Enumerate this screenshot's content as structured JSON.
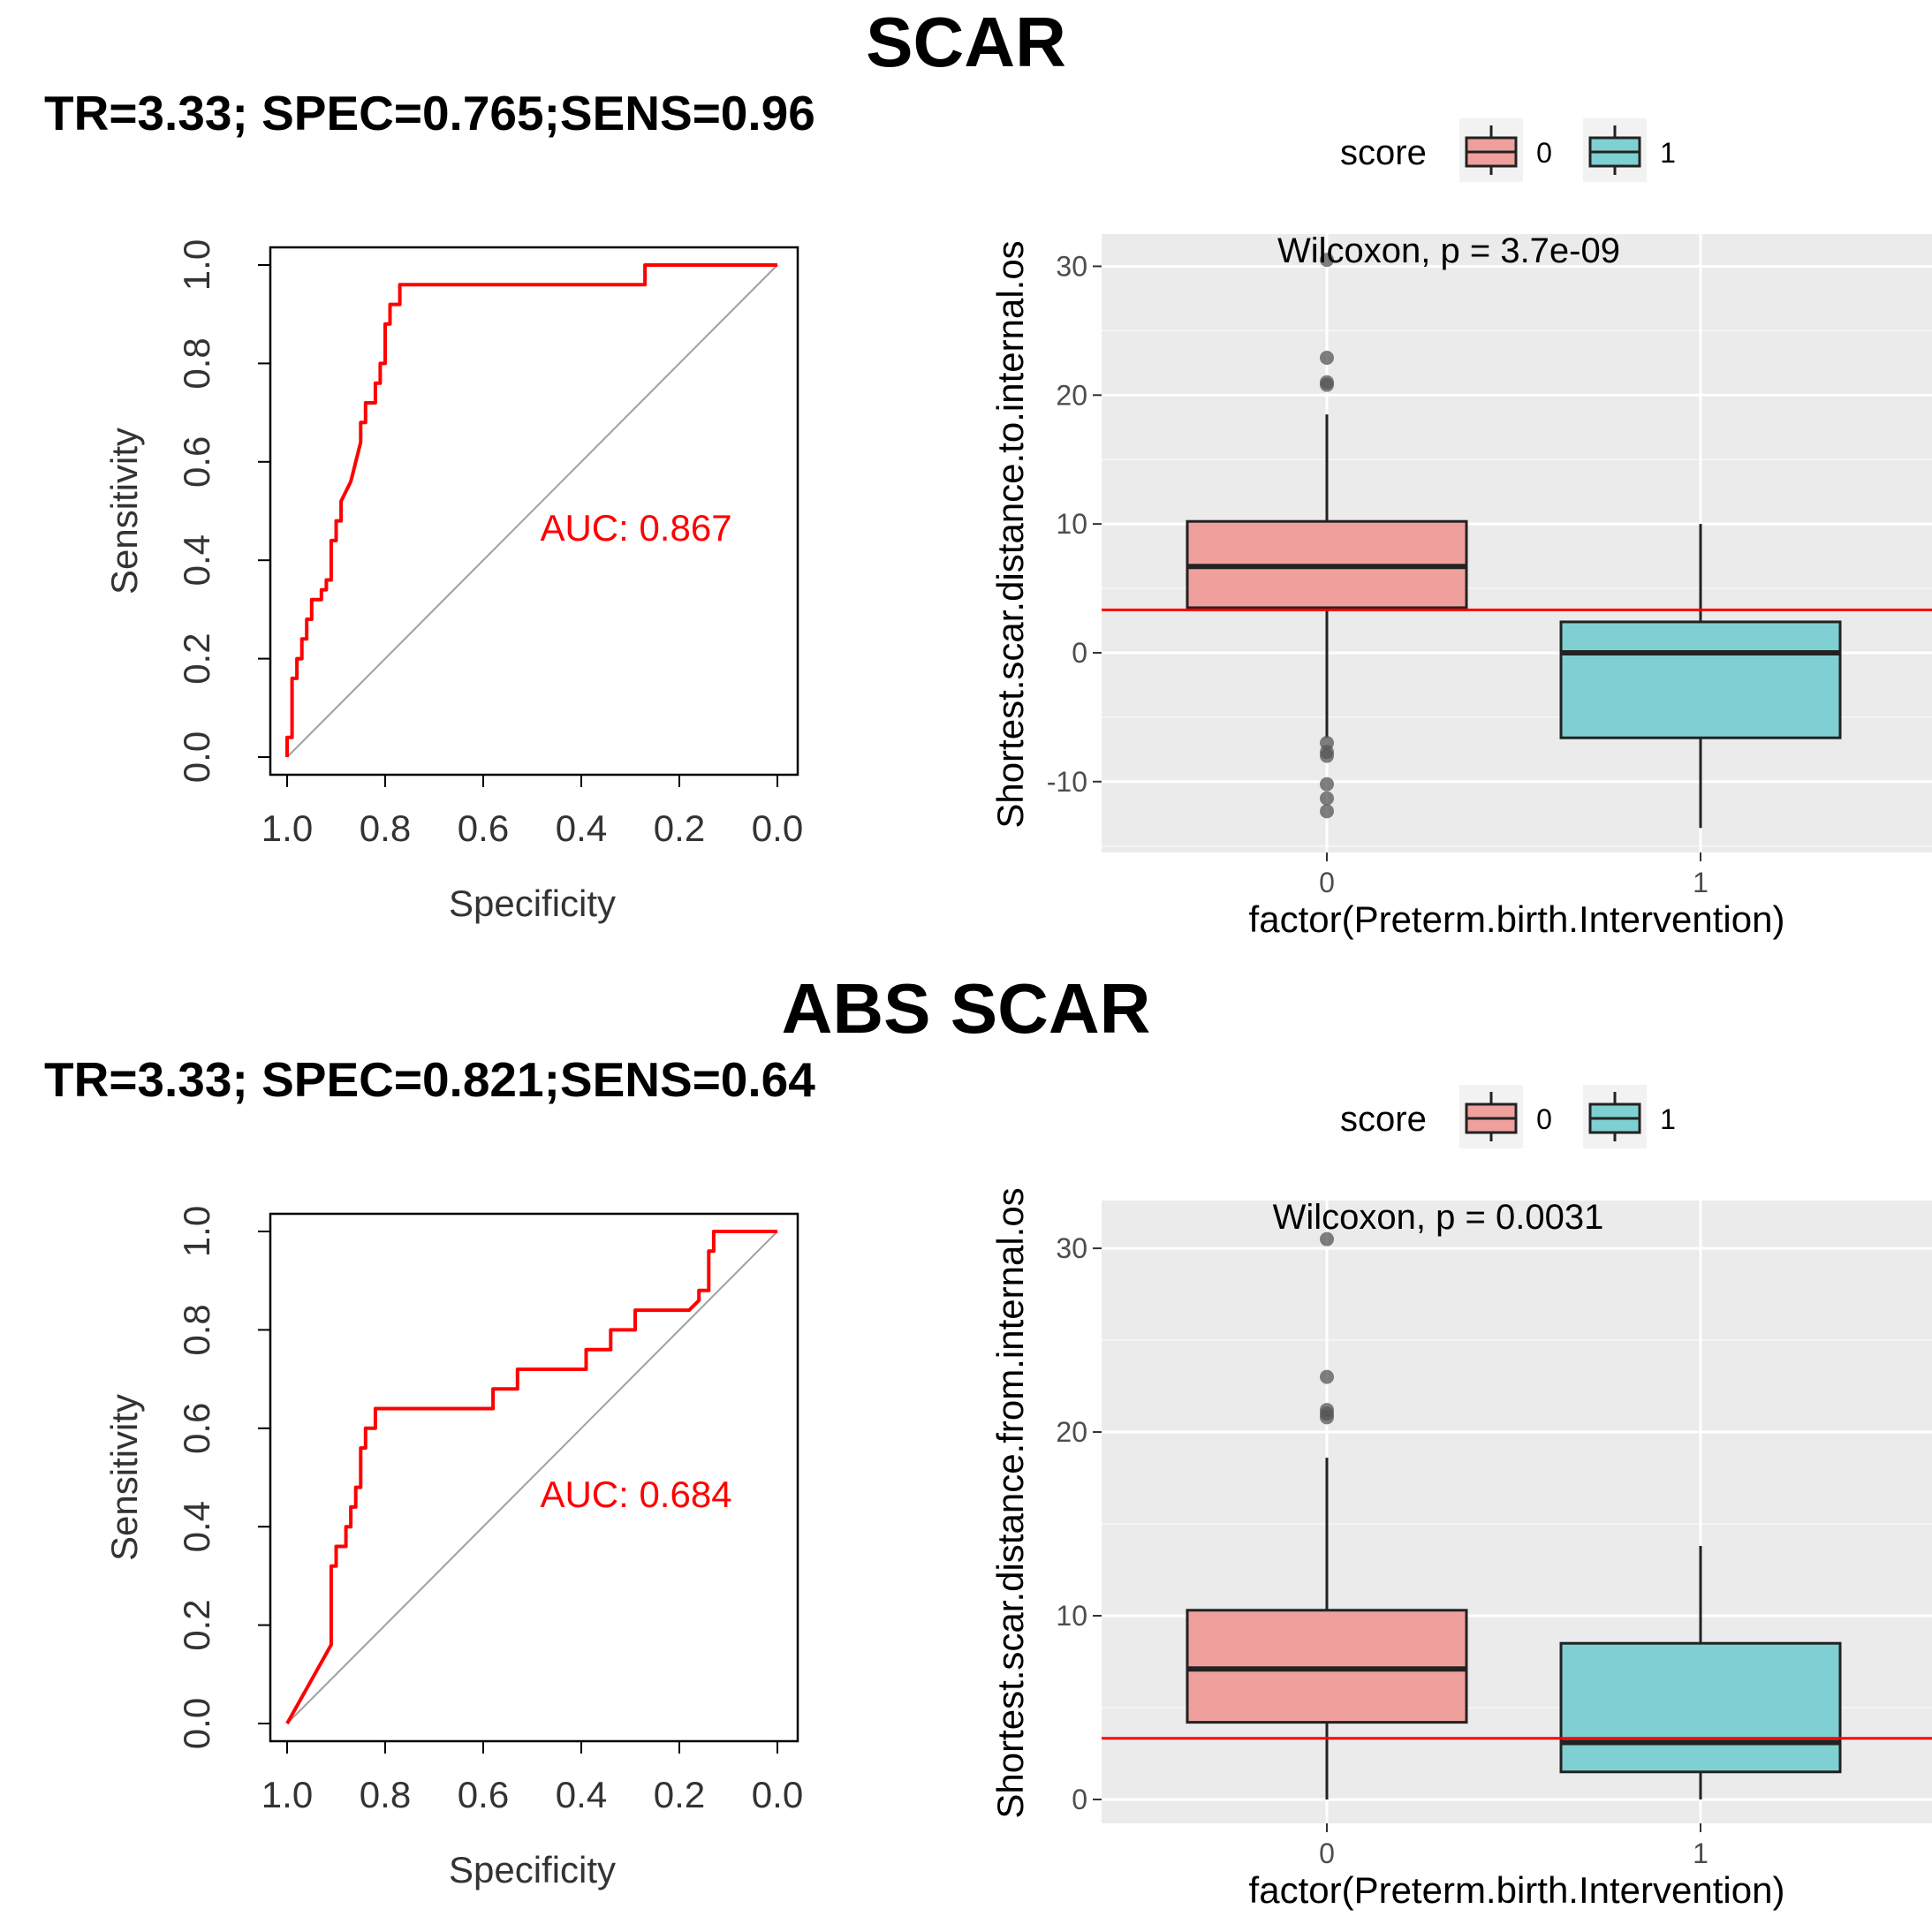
{
  "sections": [
    {
      "title": "SCAR",
      "subtitle": "TR=3.33; SPEC=0.765;SENS=0.96",
      "roc": {
        "xlabel": "Specificity",
        "ylabel": "Sensitivity",
        "auc_label": "AUC: 0.867",
        "xticks": [
          "1.0",
          "0.8",
          "0.6",
          "0.4",
          "0.2",
          "0.0"
        ],
        "yticks": [
          "0.0",
          "0.2",
          "0.4",
          "0.6",
          "0.8",
          "1.0"
        ]
      },
      "box": {
        "legend_title": "score",
        "legend_labels": [
          "0",
          "1"
        ],
        "annotation": "Wilcoxon, p = 3.7e-09",
        "xlabel": "factor(Preterm.birth.Intervention)",
        "ylabel": "Shortest.scar.distance.to.internal.os",
        "categories": [
          "0",
          "1"
        ],
        "yticks": [
          "-10",
          "0",
          "10",
          "20",
          "30"
        ]
      }
    },
    {
      "title": "ABS SCAR",
      "subtitle": "TR=3.33; SPEC=0.821;SENS=0.64",
      "roc": {
        "xlabel": "Specificity",
        "ylabel": "Sensitivity",
        "auc_label": "AUC: 0.684",
        "xticks": [
          "1.0",
          "0.8",
          "0.6",
          "0.4",
          "0.2",
          "0.0"
        ],
        "yticks": [
          "0.0",
          "0.2",
          "0.4",
          "0.6",
          "0.8",
          "1.0"
        ]
      },
      "box": {
        "legend_title": "score",
        "legend_labels": [
          "0",
          "1"
        ],
        "annotation": "Wilcoxon, p = 0.0031",
        "xlabel": "factor(Preterm.birth.Intervention)",
        "ylabel": "Shortest.scar.distance.from.internal.os",
        "categories": [
          "0",
          "1"
        ],
        "yticks": [
          "0",
          "10",
          "20",
          "30"
        ]
      }
    }
  ],
  "colors": {
    "roc_curve": "#ff0000",
    "diagonal": "#a0a0a0",
    "box_0": "#f0a09c",
    "box_1": "#7fd0d2",
    "panel_bg": "#ebebeb",
    "threshold": "#ff0000"
  },
  "chart_data": [
    {
      "type": "line",
      "title": "SCAR",
      "xlabel": "Specificity",
      "ylabel": "Sensitivity",
      "xlim": [
        1.0,
        0.0
      ],
      "ylim": [
        0.0,
        1.0
      ],
      "series": [
        {
          "x": [
            1.0,
            1.0,
            0.99,
            0.99,
            0.98,
            0.98,
            0.97,
            0.97,
            0.96,
            0.96,
            0.95,
            0.95,
            0.94,
            0.94,
            0.93,
            0.93,
            0.92,
            0.92,
            0.91,
            0.91,
            0.9,
            0.9,
            0.89,
            0.89,
            0.87,
            0.85,
            0.85,
            0.84,
            0.84,
            0.82,
            0.82,
            0.81,
            0.81,
            0.8,
            0.8,
            0.79,
            0.79,
            0.77,
            0.77,
            0.74,
            0.27,
            0.27,
            0.0
          ],
          "y": [
            0.0,
            0.04,
            0.04,
            0.16,
            0.16,
            0.2,
            0.2,
            0.24,
            0.24,
            0.28,
            0.28,
            0.32,
            0.32,
            0.32,
            0.32,
            0.34,
            0.34,
            0.36,
            0.36,
            0.44,
            0.44,
            0.48,
            0.48,
            0.52,
            0.56,
            0.64,
            0.68,
            0.68,
            0.72,
            0.72,
            0.76,
            0.76,
            0.8,
            0.8,
            0.88,
            0.88,
            0.92,
            0.92,
            0.96,
            0.96,
            0.96,
            1.0,
            1.0
          ]
        }
      ],
      "auc": 0.867,
      "annotations": [
        "AUC: 0.867"
      ]
    },
    {
      "type": "box",
      "xlabel": "factor(Preterm.birth.Intervention)",
      "ylabel": "Shortest.scar.distance.to.internal.os",
      "categories": [
        "0",
        "1"
      ],
      "ylim": [
        -15.5,
        32.5
      ],
      "legend": {
        "title": "score",
        "entries": [
          "0",
          "1"
        ],
        "position": "top"
      },
      "annotation": "Wilcoxon, p = 3.7e-09",
      "hline": 3.33,
      "boxes": [
        {
          "category": "0",
          "whisker_low": -6.6,
          "q1": 3.5,
          "median": 6.7,
          "q3": 10.2,
          "whisker_high": 18.5,
          "outliers": [
            30.5,
            22.9,
            21.0,
            20.8,
            -7.0,
            -7.7,
            -8.0,
            -10.2,
            -11.3,
            -12.3
          ]
        },
        {
          "category": "1",
          "whisker_low": -13.6,
          "q1": -6.6,
          "median": 0.0,
          "q3": 2.4,
          "whisker_high": 10.0,
          "outliers": []
        }
      ]
    },
    {
      "type": "line",
      "title": "ABS SCAR",
      "xlabel": "Specificity",
      "ylabel": "Sensitivity",
      "xlim": [
        1.0,
        0.0
      ],
      "ylim": [
        0.0,
        1.0
      ],
      "series": [
        {
          "x": [
            1.0,
            0.91,
            0.91,
            0.9,
            0.9,
            0.88,
            0.88,
            0.87,
            0.87,
            0.86,
            0.86,
            0.85,
            0.85,
            0.84,
            0.84,
            0.82,
            0.82,
            0.74,
            0.58,
            0.58,
            0.53,
            0.53,
            0.39,
            0.39,
            0.34,
            0.34,
            0.29,
            0.29,
            0.18,
            0.16,
            0.16,
            0.14,
            0.14,
            0.13,
            0.13,
            0.0
          ],
          "y": [
            0.0,
            0.16,
            0.32,
            0.32,
            0.36,
            0.36,
            0.4,
            0.4,
            0.44,
            0.44,
            0.48,
            0.48,
            0.56,
            0.56,
            0.6,
            0.6,
            0.64,
            0.64,
            0.64,
            0.68,
            0.68,
            0.72,
            0.72,
            0.76,
            0.76,
            0.8,
            0.8,
            0.84,
            0.84,
            0.86,
            0.88,
            0.88,
            0.96,
            0.96,
            1.0,
            1.0
          ]
        }
      ],
      "auc": 0.684,
      "annotations": [
        "AUC: 0.684"
      ]
    },
    {
      "type": "box",
      "xlabel": "factor(Preterm.birth.Intervention)",
      "ylabel": "Shortest.scar.distance.from.internal.os",
      "categories": [
        "0",
        "1"
      ],
      "ylim": [
        -1.3,
        32.6
      ],
      "legend": {
        "title": "score",
        "entries": [
          "0",
          "1"
        ],
        "position": "top"
      },
      "annotation": "Wilcoxon, p = 0.0031",
      "hline": 3.33,
      "boxes": [
        {
          "category": "0",
          "whisker_low": 0.0,
          "q1": 4.2,
          "median": 7.1,
          "q3": 10.3,
          "whisker_high": 18.6,
          "outliers": [
            30.5,
            23.0,
            21.2,
            21.0,
            20.8
          ]
        },
        {
          "category": "1",
          "whisker_low": 0.0,
          "q1": 1.5,
          "median": 3.1,
          "q3": 8.5,
          "whisker_high": 13.8,
          "outliers": []
        }
      ]
    }
  ]
}
